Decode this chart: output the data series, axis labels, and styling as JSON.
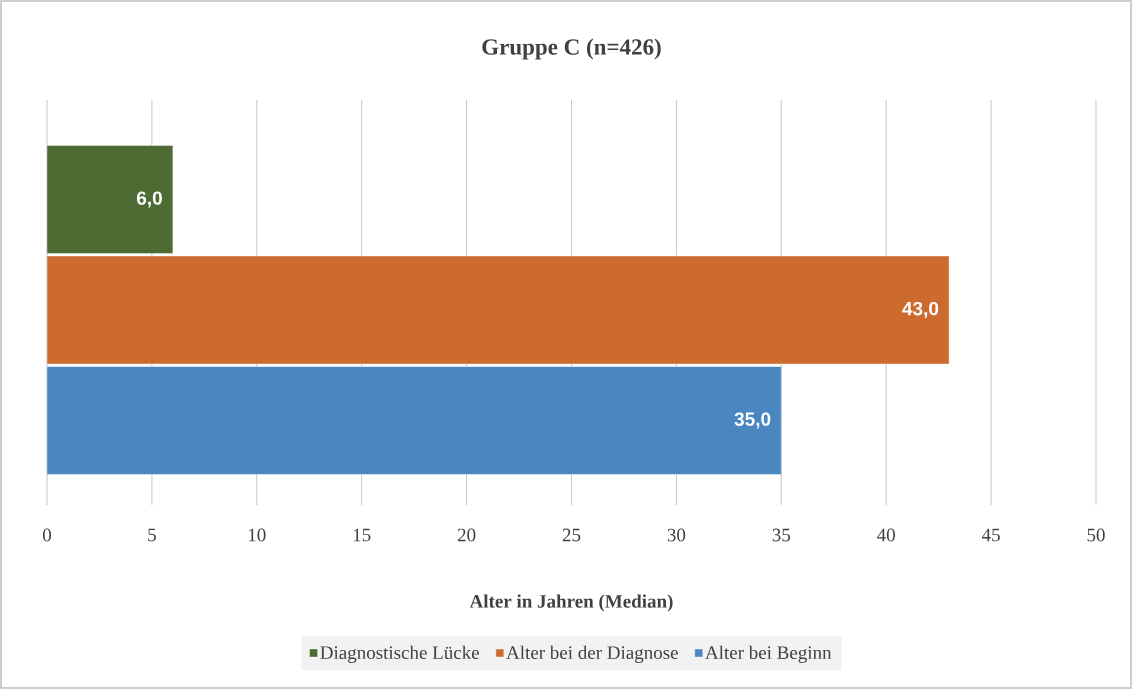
{
  "chart_data": {
    "type": "bar",
    "orientation": "horizontal",
    "title": "Gruppe C (n=426)",
    "xlabel": "Alter in Jahren (Median)",
    "categories": [
      null
    ],
    "series": [
      {
        "name": "Diagnostische Lücke",
        "color": "#4e6b34",
        "values": [
          6
        ],
        "value_labels": [
          "6,0"
        ]
      },
      {
        "name": "Alter bei der Diagnose",
        "color": "#cd6b2f",
        "values": [
          43
        ],
        "value_labels": [
          "43,0"
        ]
      },
      {
        "name": "Alter bei Beginn",
        "color": "#4a86c0",
        "values": [
          35
        ],
        "value_labels": [
          "35,0"
        ]
      }
    ],
    "xlim": [
      0,
      50
    ],
    "xticks": [
      0,
      5,
      10,
      15,
      20,
      25,
      30,
      35,
      40,
      45,
      50
    ],
    "grid": "x",
    "legend": "bottom"
  }
}
